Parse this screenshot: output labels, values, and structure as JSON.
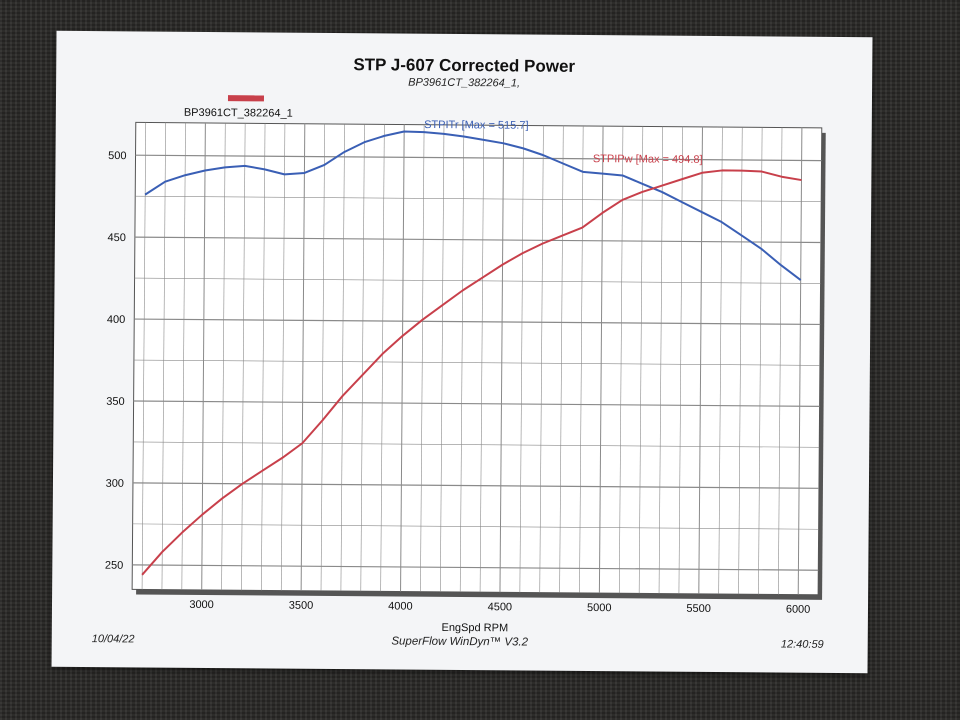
{
  "chart_data": {
    "type": "line",
    "title": "STP J-607 Corrected Power",
    "subtitle": "BP3961CT_382264_1,",
    "legend_label": "BP3961CT_382264_1",
    "xlabel": "EngSpd RPM",
    "ylabel": "",
    "xlim": [
      2650,
      6100
    ],
    "ylim": [
      235,
      520
    ],
    "xticks": [
      3000,
      3500,
      4000,
      4500,
      5000,
      5500,
      6000
    ],
    "yticks": [
      250,
      300,
      350,
      400,
      450,
      500
    ],
    "grid": true,
    "series": [
      {
        "name": "STPITr",
        "annotation": "STPITr [Max = 515.7]",
        "color": "#3a5fb5",
        "x": [
          2700,
          2800,
          2900,
          3000,
          3100,
          3200,
          3300,
          3400,
          3500,
          3600,
          3700,
          3800,
          3900,
          4000,
          4100,
          4200,
          4300,
          4400,
          4500,
          4600,
          4700,
          4800,
          4900,
          5000,
          5100,
          5200,
          5300,
          5400,
          5500,
          5600,
          5700,
          5800,
          5900,
          6000
        ],
        "y": [
          476,
          484,
          488,
          491,
          493,
          494,
          492,
          489,
          490,
          495,
          503,
          509,
          513,
          515.7,
          515.5,
          514.5,
          513,
          511,
          509,
          506,
          502,
          497,
          492,
          491,
          490,
          485,
          480,
          474,
          468,
          462,
          454,
          446,
          436,
          427
        ]
      },
      {
        "name": "STPIPw",
        "annotation": "STPIPw [Max = 494.8]",
        "color": "#c8404b",
        "x": [
          2700,
          2800,
          2900,
          3000,
          3100,
          3200,
          3300,
          3400,
          3500,
          3600,
          3700,
          3800,
          3900,
          4000,
          4100,
          4200,
          4300,
          4400,
          4500,
          4600,
          4700,
          4800,
          4900,
          5000,
          5100,
          5200,
          5300,
          5400,
          5500,
          5600,
          5700,
          5800,
          5900,
          6000
        ],
        "y": [
          244,
          258,
          270,
          281,
          291,
          300,
          308,
          316,
          325,
          339,
          354,
          367,
          380,
          391,
          401,
          410,
          419,
          427,
          435,
          442,
          448,
          453,
          458,
          467,
          475,
          480,
          484,
          488,
          492,
          493.5,
          493.5,
          493,
          490,
          488
        ]
      }
    ]
  },
  "footer": {
    "date": "10/04/22",
    "app": "SuperFlow WinDyn™ V3.2",
    "time": "12:40:59"
  },
  "colors": {
    "paper": "#f4f5f7",
    "grid": "#8a8a8a"
  }
}
